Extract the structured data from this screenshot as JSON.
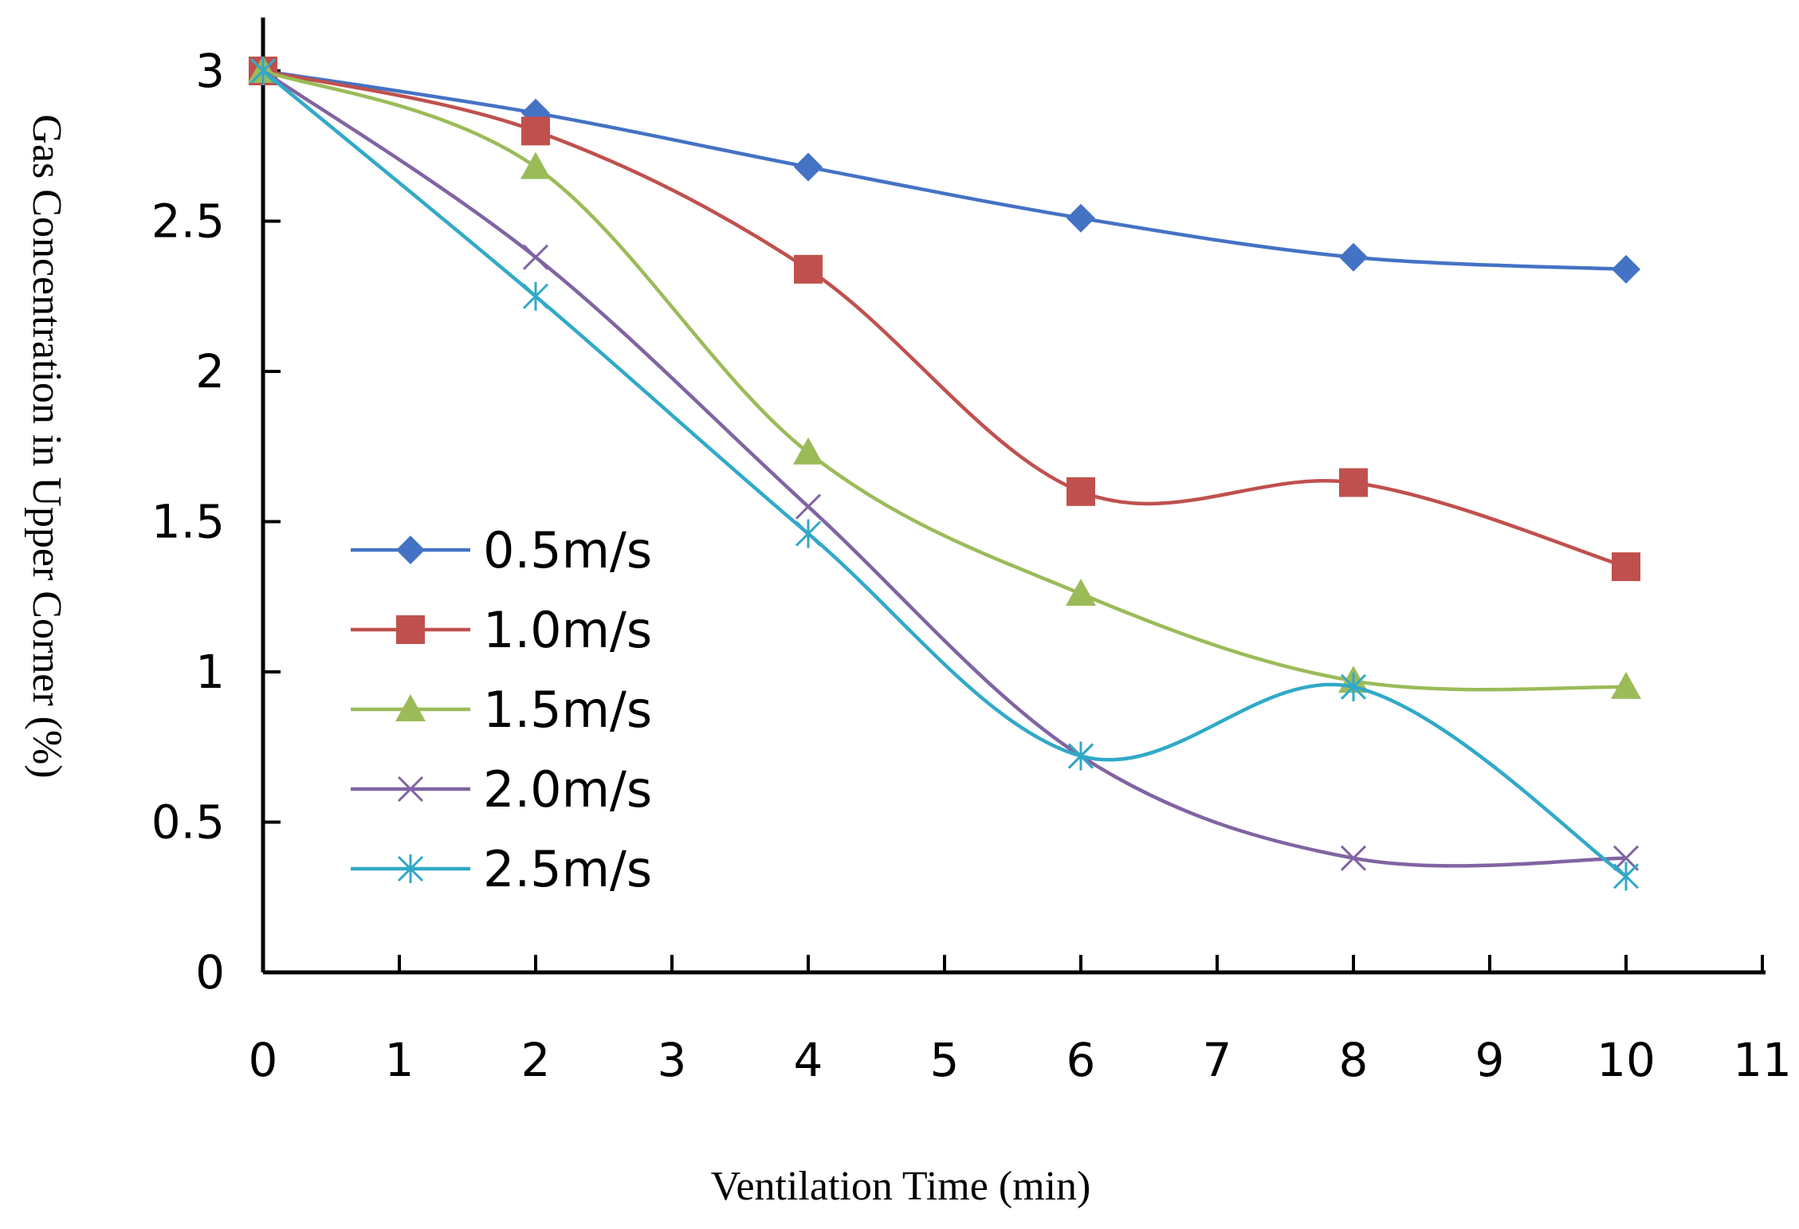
{
  "chart_data": {
    "type": "line",
    "title": "",
    "xlabel": "Ventilation Time (min)",
    "ylabel": "Gas Concentration in Upper Corner (%)",
    "xlim": [
      0,
      11
    ],
    "ylim": [
      0,
      3
    ],
    "x_ticks": [
      "0",
      "1",
      "2",
      "3",
      "4",
      "5",
      "6",
      "7",
      "8",
      "9",
      "10",
      "11"
    ],
    "y_ticks": [
      "0",
      "0.5",
      "1",
      "1.5",
      "2",
      "2.5",
      "3"
    ],
    "grid": false,
    "legend_position": "left-middle inside plot",
    "x": [
      0,
      2,
      4,
      6,
      8,
      10
    ],
    "series": [
      {
        "name": "0.5m/s",
        "color": "#4472C4",
        "marker": "diamond",
        "values": [
          3.0,
          2.86,
          2.68,
          2.51,
          2.38,
          2.34
        ]
      },
      {
        "name": "1.0m/s",
        "color": "#C0504D",
        "marker": "square",
        "values": [
          3.0,
          2.8,
          2.34,
          1.6,
          1.63,
          1.35
        ]
      },
      {
        "name": "1.5m/s",
        "color": "#9BBB59",
        "marker": "triangle",
        "values": [
          3.0,
          2.68,
          1.73,
          1.26,
          0.97,
          0.95
        ]
      },
      {
        "name": "2.0m/s",
        "color": "#8064A2",
        "marker": "x",
        "values": [
          3.0,
          2.38,
          1.55,
          0.72,
          0.38,
          0.38
        ]
      },
      {
        "name": "2.5m/s",
        "color": "#31A9C8",
        "marker": "asterisk",
        "values": [
          3.0,
          2.25,
          1.46,
          0.72,
          0.95,
          0.32
        ]
      }
    ]
  }
}
